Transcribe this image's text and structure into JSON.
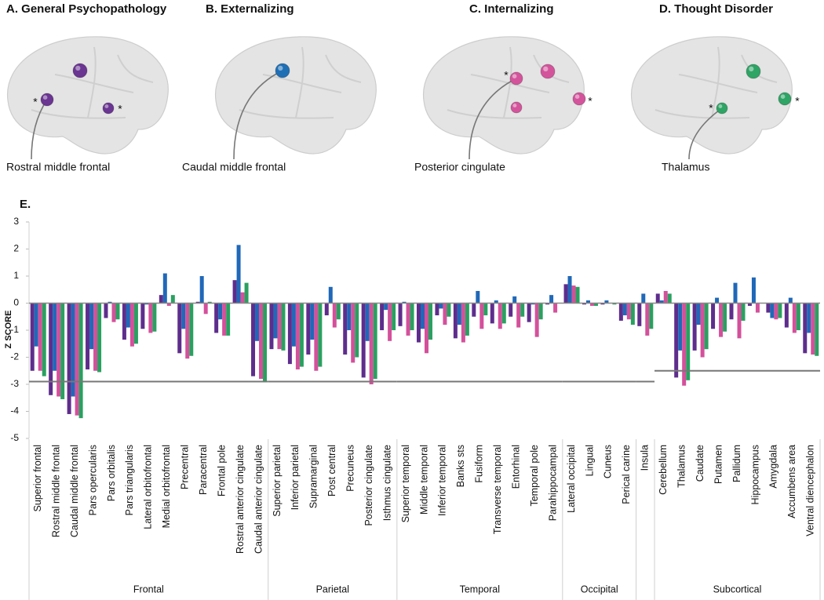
{
  "panels": [
    {
      "title": "A. General Psychopathology",
      "label": "Rostral middle frontal",
      "color": "#6b3592",
      "stars": [
        "*",
        "*"
      ]
    },
    {
      "title": "B. Externalizing",
      "label": "Caudal middle frontal",
      "color": "#1f6fb5"
    },
    {
      "title": "C. Internalizing",
      "label": "Posterior cingulate",
      "color": "#d4549c",
      "stars": [
        "*",
        "*"
      ]
    },
    {
      "title": "D. Thought Disorder",
      "label": "Thalamus",
      "color": "#2ea465",
      "stars": [
        "*",
        "*"
      ]
    }
  ],
  "chart_data": {
    "type": "bar",
    "title": "E.",
    "y_label": "Z SCORE",
    "ylim": [
      -5,
      3
    ],
    "yticks": [
      3,
      2,
      1,
      0,
      -1,
      -2,
      -3,
      -4,
      -5
    ],
    "groups": [
      {
        "label": "Frontal",
        "threshold": -2.9,
        "categories": [
          "Superior frontal",
          "Rostral middle frontal",
          "Caudal middle frontal",
          "Pars opercularis",
          "Pars orbitalis",
          "Pars triangularis",
          "Lateral orbitofrontal",
          "Medial orbitofrontal",
          "Precentral",
          "Paracentral",
          "Frontal pole",
          "Rostral anterior cingulate",
          "Caudal anterior cingulate"
        ]
      },
      {
        "label": "Parietal",
        "threshold": -2.9,
        "categories": [
          "Superior parietal",
          "Inferior parietal",
          "Supramarginal",
          "Post central",
          "Precuneus",
          "Posterior cingulate",
          "Isthmus cingulate"
        ]
      },
      {
        "label": "Temporal",
        "threshold": -2.9,
        "categories": [
          "Superior temporal",
          "Middle temporal",
          "Inferior temporal",
          "Banks sts",
          "Fusiform",
          "Transverse temporal",
          "Entorhinal",
          "Temporal pole",
          "Parahippocampal"
        ]
      },
      {
        "label": "Occipital",
        "threshold": -2.9,
        "categories": [
          "Lateral occipital",
          "Lingual",
          "Cuneus",
          "Perical carine"
        ]
      },
      {
        "label": null,
        "threshold": -2.9,
        "categories": [
          "Insula"
        ]
      },
      {
        "label": "Subcortical",
        "threshold": -2.5,
        "categories": [
          "Cerebellum",
          "Thalamus",
          "Caudate",
          "Putamen",
          "Pallidum",
          "Hippocampus",
          "Amygdala",
          "Accumbens area",
          "Ventral diencephalon"
        ]
      }
    ],
    "series": [
      {
        "color": "#5e2d8c",
        "values": [
          -2.5,
          -3.4,
          -4.1,
          -2.45,
          -0.55,
          -1.35,
          -0.95,
          0.3,
          -1.85,
          0.05,
          -1.1,
          0.85,
          -2.7,
          -1.7,
          -2.25,
          -1.9,
          -0.45,
          -1.9,
          -2.75,
          -1.0,
          -0.85,
          -1.45,
          -0.45,
          -1.3,
          -0.5,
          -0.75,
          -0.5,
          -0.7,
          -0.05,
          0.7,
          -0.05,
          -0.05,
          -0.65,
          -0.85,
          0.35,
          -2.75,
          -1.75,
          -0.95,
          -0.6,
          -0.1,
          -0.35,
          -0.9,
          -1.85
        ]
      },
      {
        "color": "#2068b8",
        "values": [
          -1.6,
          -2.5,
          -3.45,
          -1.7,
          0.05,
          -0.9,
          -0.05,
          1.1,
          -0.95,
          1.0,
          -0.6,
          2.15,
          -1.4,
          -1.3,
          -1.6,
          -1.35,
          0.6,
          -1.0,
          -1.4,
          -0.25,
          0.05,
          -0.95,
          -0.2,
          -0.8,
          0.45,
          0.1,
          0.25,
          -0.05,
          0.3,
          1.0,
          0.1,
          0.1,
          -0.45,
          0.35,
          0.1,
          -1.75,
          -0.8,
          0.2,
          0.75,
          0.95,
          -0.55,
          0.2,
          -1.1
        ]
      },
      {
        "color": "#d4509b",
        "values": [
          -2.5,
          -3.45,
          -4.15,
          -2.5,
          -0.7,
          -1.6,
          -1.1,
          -0.1,
          -2.05,
          -0.4,
          -1.2,
          0.4,
          -2.8,
          -1.7,
          -2.45,
          -2.5,
          -0.9,
          -2.2,
          -3.0,
          -1.4,
          -1.2,
          -1.85,
          -0.8,
          -1.45,
          -0.95,
          -0.95,
          -0.9,
          -1.25,
          -0.35,
          0.65,
          -0.1,
          0,
          -0.6,
          -1.2,
          0.45,
          -3.05,
          -2.0,
          -1.25,
          -1.3,
          -0.35,
          -0.6,
          -1.1,
          -1.9
        ]
      },
      {
        "color": "#2aa060",
        "values": [
          -2.7,
          -3.55,
          -4.25,
          -2.55,
          -0.6,
          -1.5,
          -1.05,
          0.3,
          -1.95,
          0.05,
          -1.2,
          0.75,
          -2.9,
          -1.75,
          -2.35,
          -2.35,
          -0.6,
          -2.0,
          -2.8,
          -1.0,
          -1.0,
          -1.35,
          -0.5,
          -1.2,
          -0.45,
          -0.75,
          -0.5,
          -0.6,
          0,
          0.6,
          -0.1,
          -0.05,
          -0.8,
          -0.95,
          0.35,
          -2.85,
          -1.7,
          -1.05,
          -0.65,
          0,
          -0.55,
          -1.0,
          -1.95
        ]
      }
    ]
  }
}
